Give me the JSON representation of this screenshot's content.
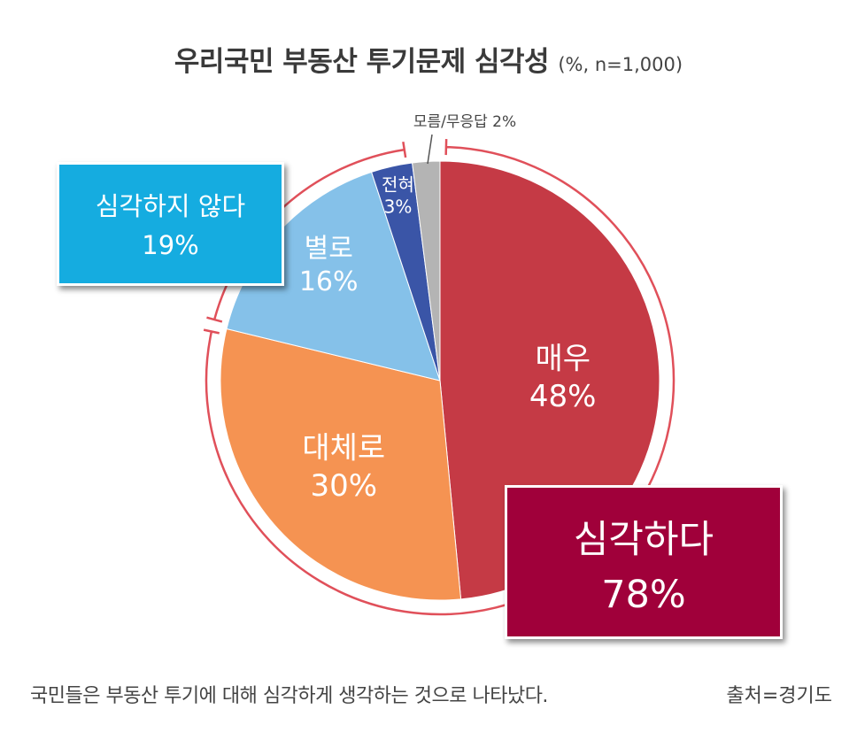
{
  "title": "우리국민 부동산 투기문제 심각성",
  "subtitle": "(%, n=1,000)",
  "chart_data": {
    "type": "pie",
    "title": "우리국민 부동산 투기문제 심각성",
    "subtitle": "(%, n=1,000)",
    "slices": [
      {
        "label": "매우",
        "value": 48,
        "value_label": "48%",
        "color": "#c53a45"
      },
      {
        "label": "대체로",
        "value": 30,
        "value_label": "30%",
        "color": "#f59352"
      },
      {
        "label": "별로",
        "value": 16,
        "value_label": "16%",
        "color": "#85c1e9"
      },
      {
        "label": "전혀",
        "value": 3,
        "value_label": "3%",
        "color": "#3a55a7"
      },
      {
        "label": "모름/무응답",
        "value": 2,
        "value_label": "2%",
        "color": "#b4b4b4"
      }
    ],
    "groups": [
      {
        "label": "심각하다",
        "value_label": "78%",
        "color": "#a0003a"
      },
      {
        "label": "심각하지 않다",
        "value_label": "19%",
        "color": "#15ace0"
      }
    ],
    "outside_label": "모름/무응답 2%"
  },
  "caption": "국민들은 부동산 투기에 대해 심각하게 생각하는 것으로 나타났다.",
  "source": "출처=경기도"
}
